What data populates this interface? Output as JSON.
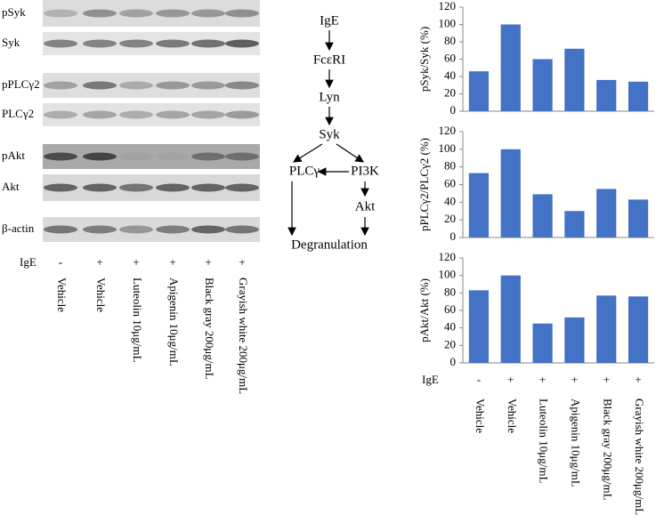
{
  "blot": {
    "rows": [
      "pSyk",
      "Syk",
      "pPLCγ2",
      "PLCγ2",
      "pAkt",
      "Akt",
      "β-actin"
    ],
    "treatment_label": "IgE",
    "treatment": [
      "-",
      "+",
      "+",
      "+",
      "+",
      "+"
    ],
    "lanes": [
      "Vehicle",
      "Vehicle",
      "Luteolin 10μg/mL",
      "Apigenin 10μg/mL",
      "Black gray 200μg/mL",
      "Grayish white 200μg/mL"
    ]
  },
  "pathway": {
    "nodes": [
      "IgE",
      "FcεRI",
      "Lyn",
      "Syk",
      "PLCγ",
      "PI3K",
      "Akt",
      "Degranulation"
    ]
  },
  "chart_data": [
    {
      "type": "bar",
      "y_label": "pSyk/Syk (%)",
      "values": [
        46,
        100,
        60,
        72,
        36,
        34
      ],
      "color": "#4472c4",
      "ylim": [
        0,
        120
      ],
      "yticks": [
        0,
        20,
        40,
        60,
        80,
        100,
        120
      ]
    },
    {
      "type": "bar",
      "y_label": "pPLCγ2/PLCγ2 (%)",
      "values": [
        73,
        100,
        49,
        30,
        55,
        43
      ],
      "color": "#4472c4",
      "ylim": [
        0,
        120
      ],
      "yticks": [
        0,
        20,
        40,
        60,
        80,
        100,
        120
      ]
    },
    {
      "type": "bar",
      "y_label": "pAkt/Akt (%)",
      "values": [
        83,
        100,
        45,
        52,
        77,
        76
      ],
      "color": "#4472c4",
      "ylim": [
        0,
        120
      ],
      "yticks": [
        0,
        20,
        40,
        60,
        80,
        100,
        120
      ],
      "treatment_label": "IgE",
      "treatment": [
        "-",
        "+",
        "+",
        "+",
        "+",
        "+"
      ],
      "categories": [
        "Vehicle",
        "Vehicle",
        "Luteolin 10μg/mL",
        "Apigenin 10μg/mL",
        "Black gray 200μg/mL",
        "Grayish white 200μg/mL"
      ]
    }
  ]
}
